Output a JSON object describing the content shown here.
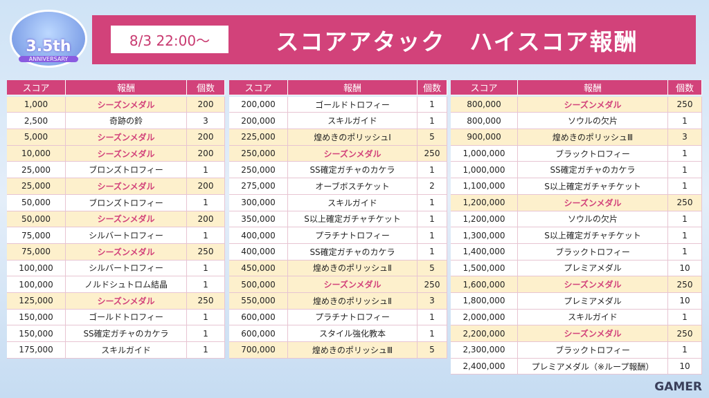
{
  "badge": {
    "number": "3.5th",
    "caption": "ANNIVERSARY"
  },
  "header": {
    "date": "8/3 22:00〜",
    "title": "スコアアタック　ハイスコア報酬"
  },
  "watermark": "GAMER",
  "tables": [
    {
      "columns": [
        "スコア",
        "報酬",
        "個数"
      ],
      "highlight_rows": [
        0,
        2,
        3,
        5,
        7,
        9,
        12
      ],
      "accent_rows": [
        0,
        2,
        3,
        5,
        7,
        9,
        12
      ],
      "rows": [
        [
          "1,000",
          "シーズンメダル",
          "200"
        ],
        [
          "2,500",
          "奇跡の鈴",
          "3"
        ],
        [
          "5,000",
          "シーズンメダル",
          "200"
        ],
        [
          "10,000",
          "シーズンメダル",
          "200"
        ],
        [
          "25,000",
          "ブロンズトロフィー",
          "1"
        ],
        [
          "25,000",
          "シーズンメダル",
          "200"
        ],
        [
          "50,000",
          "ブロンズトロフィー",
          "1"
        ],
        [
          "50,000",
          "シーズンメダル",
          "200"
        ],
        [
          "75,000",
          "シルバートロフィー",
          "1"
        ],
        [
          "75,000",
          "シーズンメダル",
          "250"
        ],
        [
          "100,000",
          "シルバートロフィー",
          "1"
        ],
        [
          "100,000",
          "ノルドシュトロム結晶",
          "1"
        ],
        [
          "125,000",
          "シーズンメダル",
          "250"
        ],
        [
          "150,000",
          "ゴールドトロフィー",
          "1"
        ],
        [
          "150,000",
          "SS確定ガチャのカケラ",
          "1"
        ],
        [
          "175,000",
          "スキルガイド",
          "1"
        ]
      ]
    },
    {
      "columns": [
        "スコア",
        "報酬",
        "個数"
      ],
      "highlight_rows": [
        2,
        3,
        10,
        11,
        12,
        15
      ],
      "accent_rows": [
        3,
        11
      ],
      "rows": [
        [
          "200,000",
          "ゴールドトロフィー",
          "1"
        ],
        [
          "200,000",
          "スキルガイド",
          "1"
        ],
        [
          "225,000",
          "煌めきのポリッシュⅠ",
          "5"
        ],
        [
          "250,000",
          "シーズンメダル",
          "250"
        ],
        [
          "250,000",
          "SS確定ガチャのカケラ",
          "1"
        ],
        [
          "275,000",
          "オーブボスチケット",
          "2"
        ],
        [
          "300,000",
          "スキルガイド",
          "1"
        ],
        [
          "350,000",
          "S以上確定ガチャチケット",
          "1"
        ],
        [
          "400,000",
          "プラチナトロフィー",
          "1"
        ],
        [
          "400,000",
          "SS確定ガチャのカケラ",
          "1"
        ],
        [
          "450,000",
          "煌めきのポリッシュⅡ",
          "5"
        ],
        [
          "500,000",
          "シーズンメダル",
          "250"
        ],
        [
          "550,000",
          "煌めきのポリッシュⅡ",
          "3"
        ],
        [
          "600,000",
          "プラチナトロフィー",
          "1"
        ],
        [
          "600,000",
          "スタイル強化教本",
          "1"
        ],
        [
          "700,000",
          "煌めきのポリッシュⅢ",
          "5"
        ]
      ]
    },
    {
      "columns": [
        "スコア",
        "報酬",
        "個数"
      ],
      "highlight_rows": [
        0,
        2,
        6,
        11,
        14
      ],
      "accent_rows": [
        0,
        6,
        11,
        14
      ],
      "rows": [
        [
          "800,000",
          "シーズンメダル",
          "250"
        ],
        [
          "800,000",
          "ソウルの欠片",
          "1"
        ],
        [
          "900,000",
          "煌めきのポリッシュⅢ",
          "3"
        ],
        [
          "1,000,000",
          "ブラックトロフィー",
          "1"
        ],
        [
          "1,000,000",
          "SS確定ガチャのカケラ",
          "1"
        ],
        [
          "1,100,000",
          "S以上確定ガチャチケット",
          "1"
        ],
        [
          "1,200,000",
          "シーズンメダル",
          "250"
        ],
        [
          "1,200,000",
          "ソウルの欠片",
          "1"
        ],
        [
          "1,300,000",
          "S以上確定ガチャチケット",
          "1"
        ],
        [
          "1,400,000",
          "ブラックトロフィー",
          "1"
        ],
        [
          "1,500,000",
          "プレミアメダル",
          "10"
        ],
        [
          "1,600,000",
          "シーズンメダル",
          "250"
        ],
        [
          "1,800,000",
          "プレミアメダル",
          "10"
        ],
        [
          "2,000,000",
          "スキルガイド",
          "1"
        ],
        [
          "2,200,000",
          "シーズンメダル",
          "250"
        ],
        [
          "2,300,000",
          "ブラックトロフィー",
          "1"
        ],
        [
          "2,400,000",
          "プレミアメダル（※ループ報酬）",
          "10"
        ]
      ]
    }
  ]
}
